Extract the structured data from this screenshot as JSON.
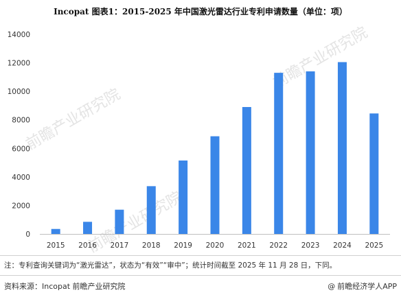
{
  "title": "Incopat  图表1：2015-2025 年中国激光雷达行业专利申请数量（单位：项）",
  "chart_data": {
    "type": "bar",
    "categories": [
      "2015",
      "2016",
      "2017",
      "2018",
      "2019",
      "2020",
      "2021",
      "2022",
      "2023",
      "2024",
      "2025"
    ],
    "values": [
      350,
      850,
      1700,
      3350,
      5150,
      6850,
      8900,
      11300,
      11400,
      12050,
      8450
    ],
    "ylim": [
      0,
      14000
    ],
    "yticks": [
      0,
      2000,
      4000,
      6000,
      8000,
      10000,
      12000,
      14000
    ],
    "bar_color": "#3a86e8",
    "grid": false
  },
  "watermark": "前瞻产业研究院",
  "note": "注：专利查询关键词为“激光雷达”，状态为“有效”“审中”；统计时间截至 2025 年 11 月 28 日，下同。",
  "footer": {
    "source": "资料来源：Incopat 前瞻产业研究院",
    "brand_icon": "at-icon",
    "brand": "前瞻经济学人APP"
  }
}
